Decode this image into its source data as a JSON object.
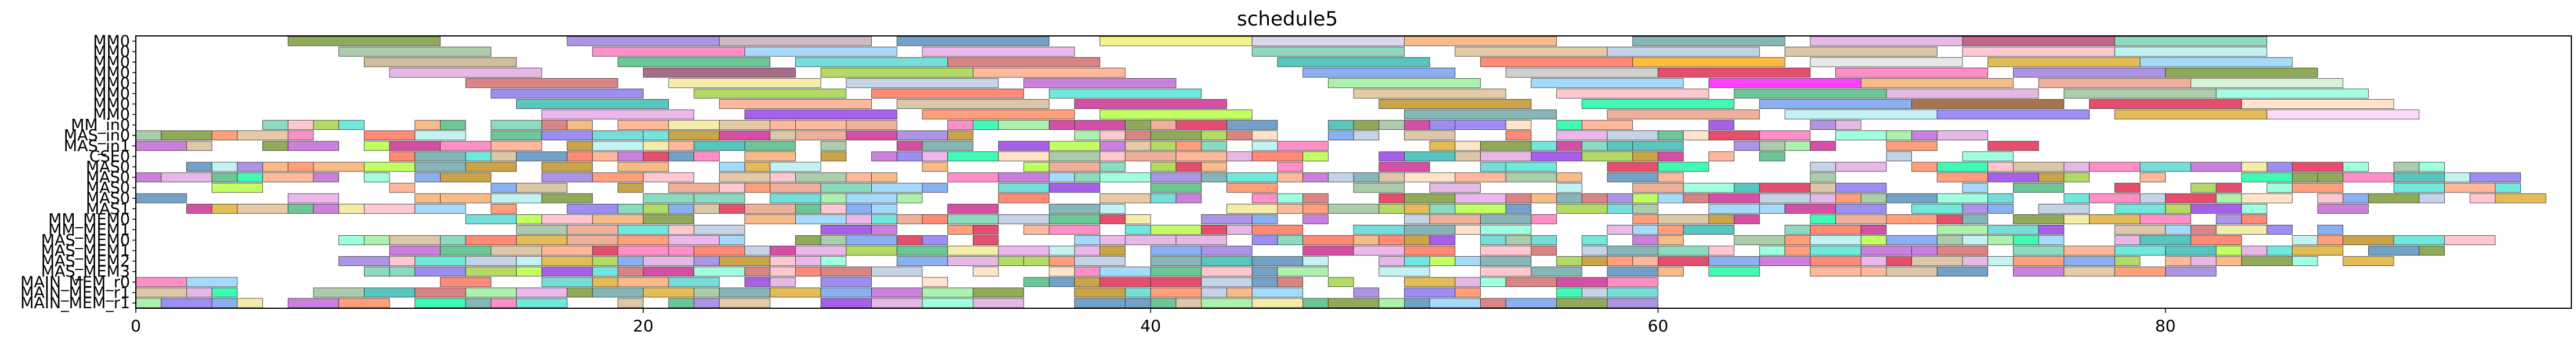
{
  "chart_data": {
    "type": "gantt",
    "title": "schedule5",
    "xlabel": "",
    "ylabel": "",
    "xlim": [
      0,
      96
    ],
    "xticks": [
      0,
      20,
      40,
      60,
      80
    ],
    "grid": false,
    "rows": [
      "MM0",
      "MM0",
      "MM0",
      "MM0",
      "MM0",
      "MM0",
      "MM0",
      "MM0",
      "MM_in0",
      "MAS_in0",
      "MAS_in1",
      "CSE0",
      "MAS0",
      "MAS0",
      "MAS0",
      "MAS0",
      "MAS1",
      "MM_MEM0",
      "MM_MEM1",
      "MAS_MEM0",
      "MAS_MEM1",
      "MAS_MEM2",
      "MAS_MEM3",
      "MAIN_MEM_r0",
      "MAIN_MEM_r1",
      "MAIN_MEM_r1"
    ],
    "palette": [
      "#8fbc8f",
      "#e6a0e6",
      "#9370db",
      "#ff69b4",
      "#66cdaa",
      "#87cefa",
      "#f0e68c",
      "#cd5c5c",
      "#20b2aa",
      "#ffa07a",
      "#6495ed",
      "#dda0dd",
      "#90ee90",
      "#b0c4de",
      "#deb887",
      "#ff6347",
      "#48d1cc",
      "#c71585",
      "#7b68ee",
      "#3cb371",
      "#ffb6c1",
      "#afeeee",
      "#d2b48c",
      "#9acd32",
      "#ba55d3",
      "#4682b4",
      "#f4a460",
      "#00fa9a",
      "#ff7f50",
      "#6b8e23",
      "#e9967a",
      "#40e0d0",
      "#daa520",
      "#8a2be2",
      "#5f9ea0",
      "#ffdab9",
      "#adff2f",
      "#dc143c",
      "#7fffd4",
      "#b8860b"
    ],
    "tasks": [
      {
        "row": 0,
        "start": 6,
        "end": 12,
        "color": "#6b8e23"
      },
      {
        "row": 0,
        "start": 17,
        "end": 23,
        "color": "#9370db"
      },
      {
        "row": 0,
        "start": 23,
        "end": 29,
        "color": "#c0a0b0"
      },
      {
        "row": 0,
        "start": 30,
        "end": 36,
        "color": "#4682b4"
      },
      {
        "row": 0,
        "start": 38,
        "end": 44,
        "color": "#f0f060"
      },
      {
        "row": 0,
        "start": 44,
        "end": 50,
        "color": "#d0c8e8"
      },
      {
        "row": 0,
        "start": 50,
        "end": 56,
        "color": "#f4a460"
      },
      {
        "row": 0,
        "start": 59,
        "end": 65,
        "color": "#5f9ea0"
      },
      {
        "row": 0,
        "start": 66,
        "end": 72,
        "color": "#dda0dd"
      },
      {
        "row": 0,
        "start": 72,
        "end": 78,
        "color": "#b03060"
      },
      {
        "row": 0,
        "start": 78,
        "end": 84,
        "color": "#66cdaa"
      },
      {
        "row": 1,
        "start": 8,
        "end": 14,
        "color": "#8fbc8f"
      },
      {
        "row": 1,
        "start": 18,
        "end": 24,
        "color": "#ff69b4"
      },
      {
        "row": 1,
        "start": 24,
        "end": 30,
        "color": "#87cefa"
      },
      {
        "row": 1,
        "start": 31,
        "end": 37,
        "color": "#e6a0e6"
      },
      {
        "row": 1,
        "start": 44,
        "end": 50,
        "color": "#66cdaa"
      },
      {
        "row": 1,
        "start": 52,
        "end": 58,
        "color": "#deb887"
      },
      {
        "row": 1,
        "start": 58,
        "end": 64,
        "color": "#b0c4de"
      },
      {
        "row": 1,
        "start": 65,
        "end": 71,
        "color": "#d2b48c"
      },
      {
        "row": 1,
        "start": 72,
        "end": 78,
        "color": "#ffb6c1"
      },
      {
        "row": 1,
        "start": 78,
        "end": 84,
        "color": "#afeeee"
      },
      {
        "row": 2,
        "start": 9,
        "end": 15,
        "color": "#c2a67a"
      },
      {
        "row": 2,
        "start": 19,
        "end": 25,
        "color": "#3cb371"
      },
      {
        "row": 2,
        "start": 26,
        "end": 32,
        "color": "#48d1cc"
      },
      {
        "row": 2,
        "start": 32,
        "end": 38,
        "color": "#cd5c5c"
      },
      {
        "row": 2,
        "start": 45,
        "end": 51,
        "color": "#20b2aa"
      },
      {
        "row": 2,
        "start": 53,
        "end": 59,
        "color": "#ff6347"
      },
      {
        "row": 2,
        "start": 59,
        "end": 65,
        "color": "#ffa500"
      },
      {
        "row": 2,
        "start": 66,
        "end": 72,
        "color": "#e0e0e0"
      },
      {
        "row": 2,
        "start": 73,
        "end": 79,
        "color": "#daa520"
      },
      {
        "row": 2,
        "start": 79,
        "end": 85,
        "color": "#87cefa"
      },
      {
        "row": 3,
        "start": 10,
        "end": 16,
        "color": "#dda0dd"
      },
      {
        "row": 3,
        "start": 20,
        "end": 26,
        "color": "#8b3a62"
      },
      {
        "row": 3,
        "start": 27,
        "end": 33,
        "color": "#9acd32"
      },
      {
        "row": 3,
        "start": 33,
        "end": 39,
        "color": "#ffa07a"
      },
      {
        "row": 3,
        "start": 46,
        "end": 52,
        "color": "#6495ed"
      },
      {
        "row": 3,
        "start": 54,
        "end": 60,
        "color": "#c0c0c0"
      },
      {
        "row": 3,
        "start": 60,
        "end": 66,
        "color": "#dc143c"
      },
      {
        "row": 3,
        "start": 67,
        "end": 73,
        "color": "#ff69b4"
      },
      {
        "row": 3,
        "start": 74,
        "end": 80,
        "color": "#9370db"
      },
      {
        "row": 3,
        "start": 80,
        "end": 86,
        "color": "#6b8e23"
      },
      {
        "row": 4,
        "start": 13,
        "end": 19,
        "color": "#cd5c5c"
      },
      {
        "row": 4,
        "start": 21,
        "end": 27,
        "color": "#f0e68c"
      },
      {
        "row": 4,
        "start": 28,
        "end": 34,
        "color": "#b0c4de"
      },
      {
        "row": 4,
        "start": 35,
        "end": 41,
        "color": "#ba55d3"
      },
      {
        "row": 4,
        "start": 47,
        "end": 53,
        "color": "#90ee90"
      },
      {
        "row": 4,
        "start": 55,
        "end": 61,
        "color": "#87cefa"
      },
      {
        "row": 4,
        "start": 62,
        "end": 68,
        "color": "#ff00ff"
      },
      {
        "row": 4,
        "start": 68,
        "end": 74,
        "color": "#f4a460"
      },
      {
        "row": 4,
        "start": 75,
        "end": 81,
        "color": "#e9967a"
      },
      {
        "row": 4,
        "start": 81,
        "end": 87,
        "color": "#c8f0c8"
      },
      {
        "row": 5,
        "start": 14,
        "end": 20,
        "color": "#7b68ee"
      },
      {
        "row": 5,
        "start": 22,
        "end": 28,
        "color": "#9acd32"
      },
      {
        "row": 5,
        "start": 29,
        "end": 35,
        "color": "#ff6347"
      },
      {
        "row": 5,
        "start": 36,
        "end": 42,
        "color": "#40e0d0"
      },
      {
        "row": 5,
        "start": 48,
        "end": 54,
        "color": "#deb887"
      },
      {
        "row": 5,
        "start": 56,
        "end": 62,
        "color": "#ffb6c1"
      },
      {
        "row": 5,
        "start": 63,
        "end": 69,
        "color": "#3cb371"
      },
      {
        "row": 5,
        "start": 69,
        "end": 75,
        "color": "#dda0dd"
      },
      {
        "row": 5,
        "start": 76,
        "end": 82,
        "color": "#8fbc8f"
      },
      {
        "row": 5,
        "start": 82,
        "end": 88,
        "color": "#7fffd4"
      },
      {
        "row": 6,
        "start": 15,
        "end": 21,
        "color": "#20b2aa"
      },
      {
        "row": 6,
        "start": 23,
        "end": 29,
        "color": "#ffa07a"
      },
      {
        "row": 6,
        "start": 30,
        "end": 36,
        "color": "#d2b48c"
      },
      {
        "row": 6,
        "start": 37,
        "end": 43,
        "color": "#c71585"
      },
      {
        "row": 6,
        "start": 49,
        "end": 55,
        "color": "#b8860b"
      },
      {
        "row": 6,
        "start": 57,
        "end": 63,
        "color": "#00fa9a"
      },
      {
        "row": 6,
        "start": 64,
        "end": 70,
        "color": "#6495ed"
      },
      {
        "row": 6,
        "start": 70,
        "end": 76,
        "color": "#8b4513"
      },
      {
        "row": 6,
        "start": 77,
        "end": 83,
        "color": "#dc143c"
      },
      {
        "row": 6,
        "start": 83,
        "end": 89,
        "color": "#ffdab9"
      },
      {
        "row": 7,
        "start": 16,
        "end": 22,
        "color": "#e6a0e6"
      },
      {
        "row": 7,
        "start": 24,
        "end": 30,
        "color": "#8a2be2"
      },
      {
        "row": 7,
        "start": 31,
        "end": 37,
        "color": "#ff7f50"
      },
      {
        "row": 7,
        "start": 38,
        "end": 44,
        "color": "#adff2f"
      },
      {
        "row": 7,
        "start": 50,
        "end": 56,
        "color": "#5f9ea0"
      },
      {
        "row": 7,
        "start": 58,
        "end": 64,
        "color": "#e9967a"
      },
      {
        "row": 7,
        "start": 65,
        "end": 71,
        "color": "#afeeee"
      },
      {
        "row": 7,
        "start": 71,
        "end": 77,
        "color": "#7b68ee"
      },
      {
        "row": 7,
        "start": 78,
        "end": 84,
        "color": "#daa520"
      },
      {
        "row": 7,
        "start": 84,
        "end": 90,
        "color": "#f8d0f8"
      }
    ]
  }
}
